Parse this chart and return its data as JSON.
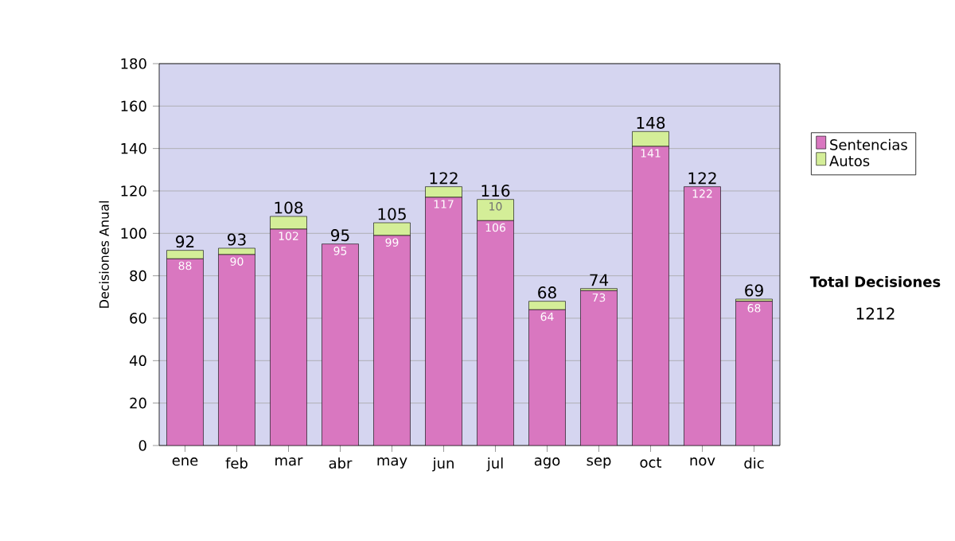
{
  "chart_data": {
    "type": "bar",
    "stacked": true,
    "ylabel": "Decisiones Anual",
    "categories": [
      "ene",
      "feb",
      "mar",
      "abr",
      "may",
      "jun",
      "jul",
      "ago",
      "sep",
      "oct",
      "nov",
      "dic"
    ],
    "series": [
      {
        "name": "Sentencias",
        "color": "#d977c0",
        "values": [
          88,
          90,
          102,
          95,
          99,
          117,
          106,
          64,
          73,
          141,
          122,
          68
        ],
        "value_labels": [
          "88",
          "90",
          "102",
          "95",
          "99",
          "117",
          "106",
          "64",
          "73",
          "141",
          "122",
          "68"
        ]
      },
      {
        "name": "Autos",
        "color": "#d4ee98",
        "values": [
          4,
          3,
          6,
          0,
          6,
          5,
          10,
          4,
          1,
          7,
          0,
          1
        ],
        "value_labels": [
          null,
          null,
          null,
          null,
          null,
          null,
          "10",
          null,
          null,
          null,
          null,
          null
        ]
      }
    ],
    "totals": [
      "92",
      "93",
      "108",
      "95",
      "105",
      "122",
      "116",
      "68",
      "74",
      "148",
      "122",
      "69"
    ],
    "ylim": [
      0,
      180
    ],
    "yticks": [
      0,
      20,
      40,
      60,
      80,
      100,
      120,
      140,
      160,
      180
    ],
    "grid": "y",
    "legend": "right",
    "annotations": [
      "Total Decisiones",
      "1212"
    ]
  }
}
